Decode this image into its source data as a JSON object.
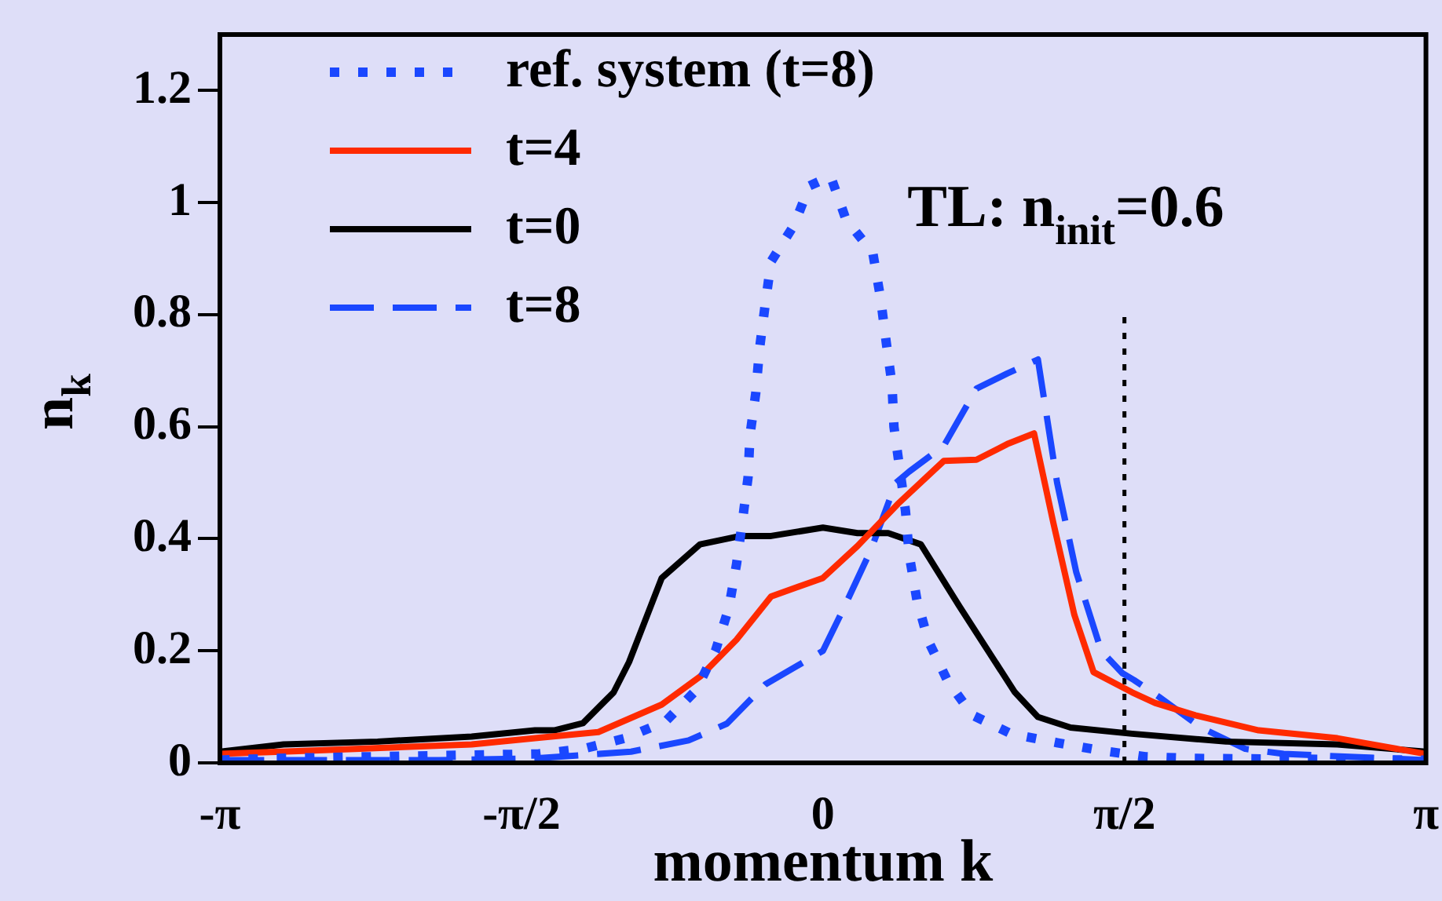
{
  "chart_data": {
    "type": "line",
    "xlabel": "momentum k",
    "ylabel": "n$_{k}$",
    "annotations": [
      "TL: n$_{init}$=0.6"
    ],
    "xlim": [
      -3.1416,
      3.1416
    ],
    "xticks": [
      {
        "value": -3.1416,
        "label": "-π"
      },
      {
        "value": -1.5708,
        "label": "-π/2"
      },
      0,
      {
        "value": 1.5708,
        "label": "π/2"
      },
      {
        "value": 3.1416,
        "label": "π"
      }
    ],
    "ylim": [
      0,
      1.3
    ],
    "yticks": [
      0,
      0.2,
      0.4,
      0.6,
      0.8,
      1,
      1.2
    ],
    "grid": false,
    "legend": "top left",
    "marker": "none",
    "series": [
      {
        "name": "ref. system (t=8)",
        "color": "#1a47ff",
        "line_style": "dotted",
        "x": [
          -3.14,
          -2.87,
          -1.48,
          -1.25,
          -1.03,
          -0.82,
          -0.66,
          -0.56,
          -0.49,
          -0.45,
          -0.42,
          -0.39,
          -0.38,
          -0.35,
          -0.33,
          -0.3,
          -0.27,
          -0.15,
          -0.07,
          0.04,
          0.12,
          0.26,
          0.3,
          0.33,
          0.36,
          0.37,
          0.4,
          0.43,
          0.45,
          0.49,
          0.55,
          0.65,
          0.78,
          0.98,
          1.22,
          1.45,
          1.68,
          1.92,
          3.14
        ],
        "values": [
          0.005,
          0.008,
          0.016,
          0.025,
          0.044,
          0.074,
          0.13,
          0.2,
          0.277,
          0.355,
          0.43,
          0.51,
          0.585,
          0.66,
          0.74,
          0.82,
          0.895,
          0.96,
          1.03,
          1.047,
          0.97,
          0.91,
          0.83,
          0.75,
          0.675,
          0.6,
          0.525,
          0.45,
          0.37,
          0.29,
          0.217,
          0.146,
          0.085,
          0.052,
          0.036,
          0.022,
          0.011,
          0.008,
          0.005
        ]
      },
      {
        "name": "t=4",
        "color": "#ff2a00",
        "line_style": "solid",
        "x": [
          -3.14,
          -2.65,
          -1.83,
          -1.5,
          -1.17,
          -0.84,
          -0.64,
          -0.45,
          -0.27,
          0,
          0.18,
          0.39,
          0.63,
          0.8,
          0.96,
          1.1,
          1.2,
          1.31,
          1.41,
          1.61,
          1.73,
          1.94,
          2.27,
          2.68,
          3.14
        ],
        "values": [
          0.016,
          0.022,
          0.033,
          0.044,
          0.055,
          0.104,
          0.154,
          0.22,
          0.297,
          0.33,
          0.387,
          0.462,
          0.539,
          0.541,
          0.569,
          0.588,
          0.429,
          0.264,
          0.162,
          0.126,
          0.107,
          0.085,
          0.058,
          0.044,
          0.016
        ]
      },
      {
        "name": "t=0",
        "color": "#000000",
        "line_style": "solid",
        "x": [
          -3.14,
          -2.81,
          -2.32,
          -1.83,
          -1.5,
          -1.4,
          -1.25,
          -1.09,
          -1.01,
          -0.84,
          -0.64,
          -0.43,
          -0.27,
          0,
          0.18,
          0.34,
          0.51,
          0.71,
          1,
          1.12,
          1.29,
          1.61,
          2.1,
          2.68,
          3.14
        ],
        "values": [
          0.02,
          0.033,
          0.038,
          0.047,
          0.058,
          0.058,
          0.071,
          0.126,
          0.18,
          0.33,
          0.39,
          0.405,
          0.405,
          0.42,
          0.41,
          0.41,
          0.39,
          0.28,
          0.126,
          0.082,
          0.063,
          0.052,
          0.038,
          0.033,
          0.02
        ]
      },
      {
        "name": "t=8",
        "color": "#1a47ff",
        "line_style": "dashed",
        "x": [
          -3.14,
          -2,
          -1.5,
          -1,
          -0.7,
          -0.5,
          -0.3,
          0,
          0.1,
          0.25,
          0.38,
          0.45,
          0.63,
          0.8,
          0.96,
          1.12,
          1.22,
          1.32,
          1.45,
          1.56,
          1.62,
          1.75,
          1.97,
          2.2,
          2.4,
          3.14
        ],
        "values": [
          0.005,
          0.005,
          0.008,
          0.02,
          0.04,
          0.07,
          0.14,
          0.2,
          0.27,
          0.38,
          0.5,
          0.52,
          0.566,
          0.668,
          0.695,
          0.72,
          0.5,
          0.34,
          0.2,
          0.16,
          0.148,
          0.118,
          0.063,
          0.025,
          0.016,
          0.005
        ]
      },
      {
        "color": "#000000",
        "line_style": "dotted",
        "x": [
          1.5708,
          1.5708
        ],
        "values": [
          0,
          0.8
        ]
      }
    ]
  }
}
